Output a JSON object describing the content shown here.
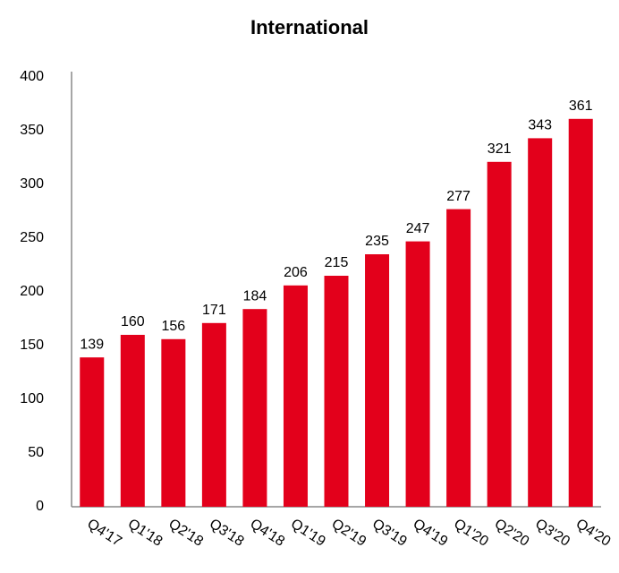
{
  "chart_data": {
    "type": "bar",
    "title": "International",
    "categories": [
      "Q4'17",
      "Q1'18",
      "Q2'18",
      "Q3'18",
      "Q4'18",
      "Q1'19",
      "Q2'19",
      "Q3'19",
      "Q4'19",
      "Q1'20",
      "Q2'20",
      "Q3'20",
      "Q4'20"
    ],
    "values": [
      139,
      160,
      156,
      171,
      184,
      206,
      215,
      235,
      247,
      277,
      321,
      343,
      361
    ],
    "color": "#e3001b",
    "ylim": [
      0,
      400
    ],
    "yticks": [
      0,
      50,
      100,
      150,
      200,
      250,
      300,
      350,
      400
    ],
    "grid": false
  }
}
